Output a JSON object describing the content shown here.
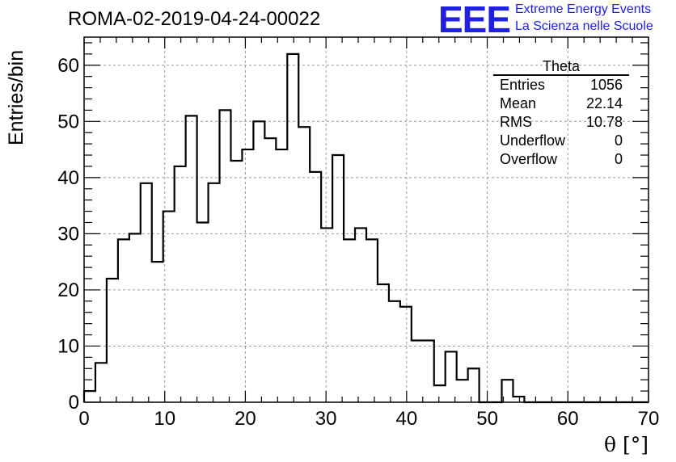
{
  "title": "ROMA-02-2019-04-24-00022",
  "logo": {
    "mark": "EEE",
    "line1": "Extreme Energy Events",
    "line2": "La Scienza nelle Scuole",
    "color": "#2020e0"
  },
  "stats": {
    "name": "Theta",
    "rows": [
      {
        "label": "Entries",
        "value": "1056"
      },
      {
        "label": "Mean",
        "value": "22.14"
      },
      {
        "label": "RMS",
        "value": "10.78"
      },
      {
        "label": "Underflow",
        "value": "0"
      },
      {
        "label": "Overflow",
        "value": "0"
      }
    ]
  },
  "chart_data": {
    "type": "bar",
    "histogram": true,
    "xlabel": "θ [°]",
    "ylabel": "Entries/bin",
    "xlim": [
      0,
      70
    ],
    "ylim": [
      0,
      65
    ],
    "xticks": [
      0,
      10,
      20,
      30,
      40,
      50,
      60,
      70
    ],
    "yticks": [
      0,
      10,
      20,
      30,
      40,
      50,
      60
    ],
    "grid": true,
    "bin_width": 1.4,
    "values": [
      2,
      7,
      22,
      29,
      30,
      39,
      25,
      34,
      42,
      51,
      32,
      39,
      52,
      43,
      45,
      50,
      47,
      45,
      62,
      49,
      41,
      31,
      44,
      29,
      31,
      29,
      21,
      18,
      17,
      11,
      11,
      3,
      9,
      4,
      6,
      0,
      0,
      4,
      1,
      0,
      0,
      0,
      0,
      0,
      0,
      0,
      0,
      0,
      0,
      0
    ]
  }
}
